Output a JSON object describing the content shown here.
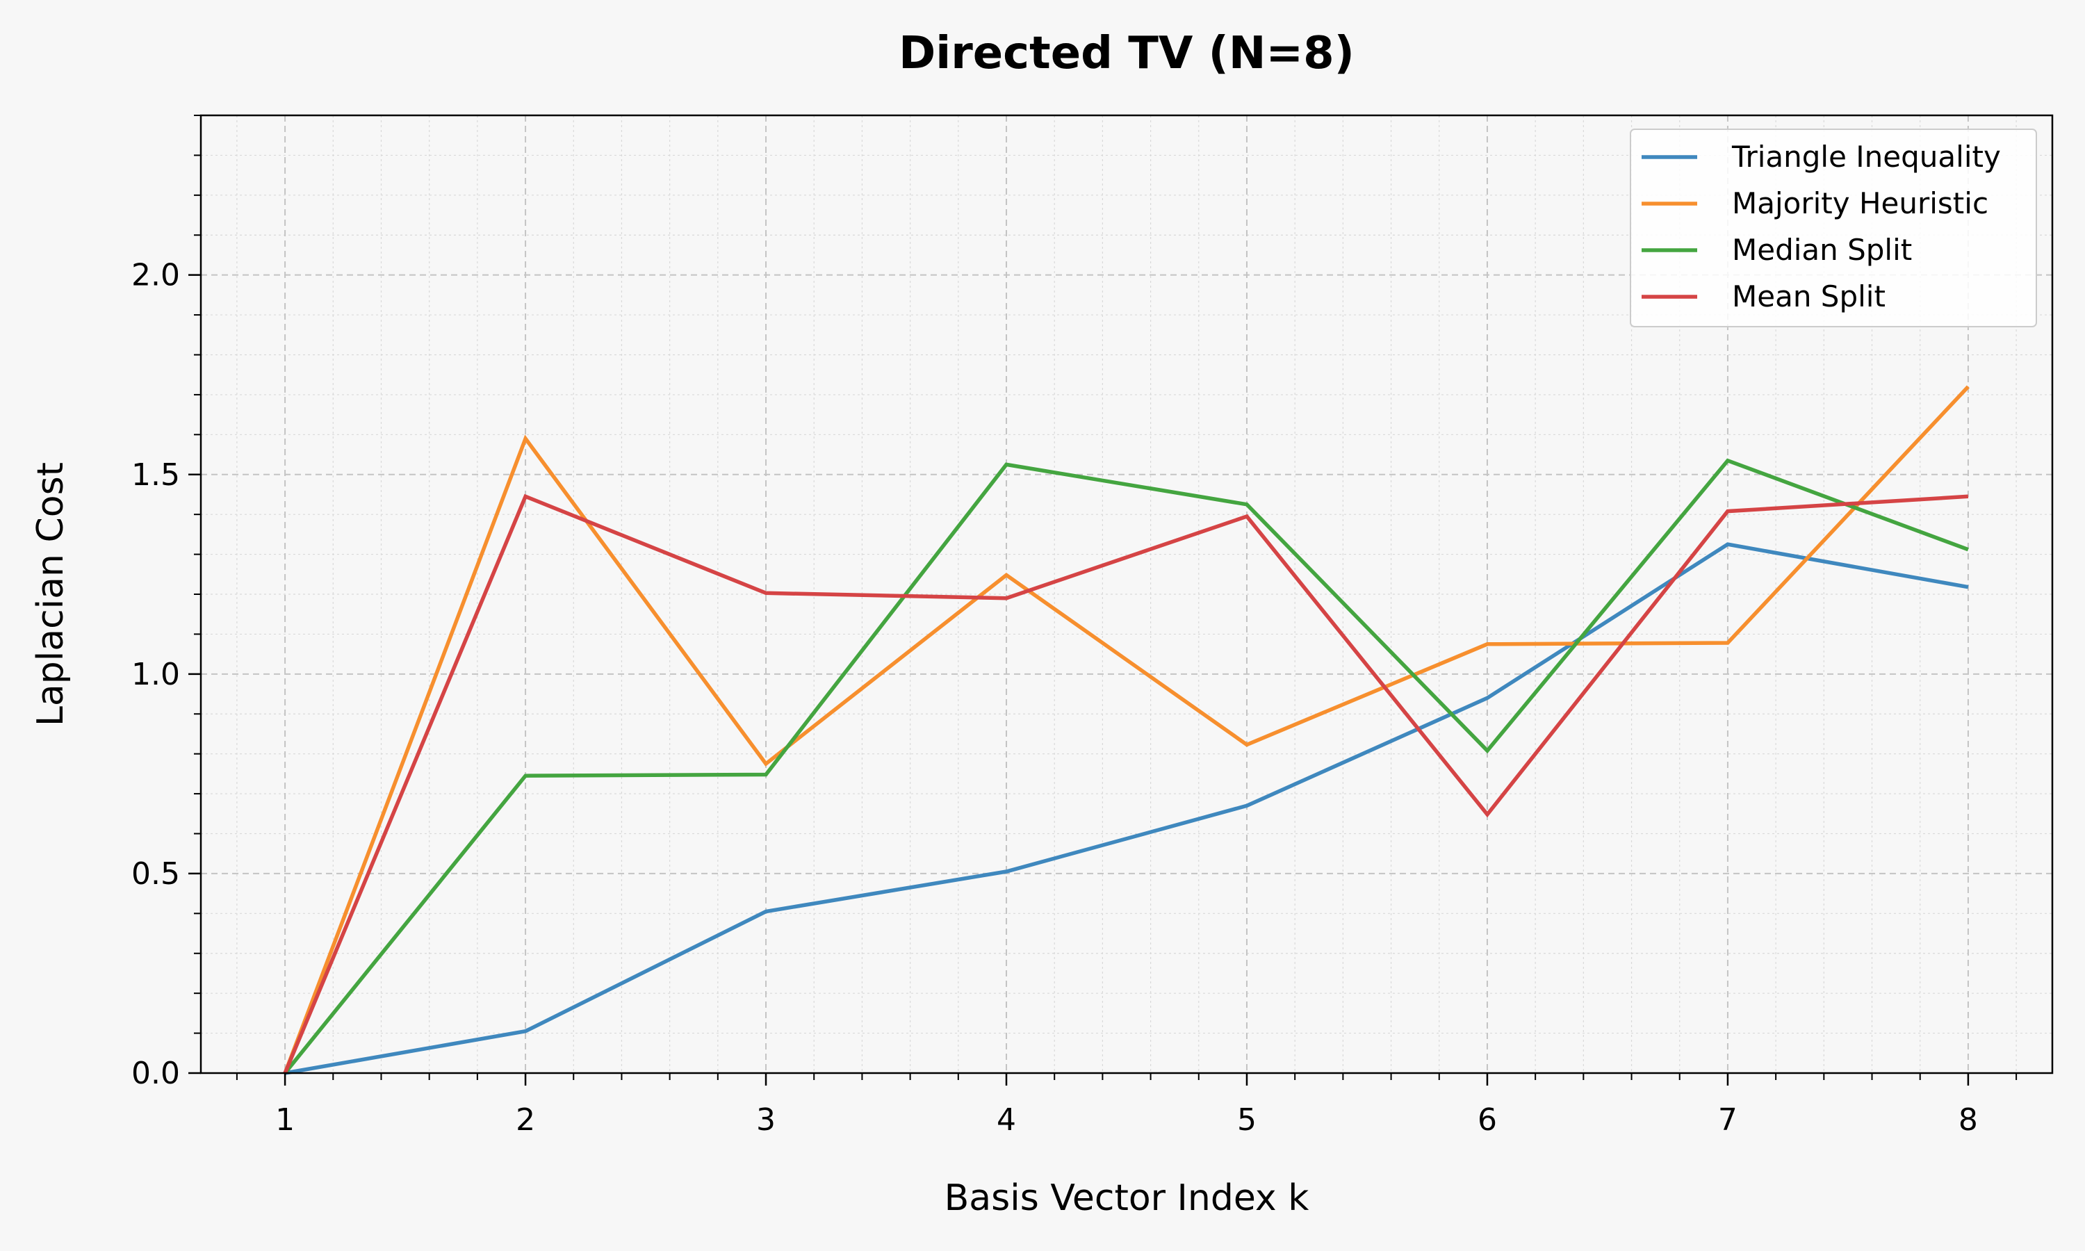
{
  "chart_data": {
    "type": "line",
    "title": "Directed TV (N=8)",
    "xlabel": "Basis Vector Index k",
    "ylabel": "Laplacian Cost",
    "x": [
      1,
      2,
      3,
      4,
      5,
      6,
      7,
      8
    ],
    "xlim": [
      0.65,
      8.35
    ],
    "ylim": [
      0.0,
      2.4
    ],
    "yticks": [
      0.0,
      0.5,
      1.0,
      1.5,
      2.0
    ],
    "ytick_labels": [
      "0.0",
      "0.5",
      "1.0",
      "1.5",
      "2.0"
    ],
    "xtick_labels": [
      "1",
      "2",
      "3",
      "4",
      "5",
      "6",
      "7",
      "8"
    ],
    "grid": true,
    "legend_position": "top-right",
    "series": [
      {
        "name": "Triangle Inequality",
        "color": "#3f88be",
        "values": [
          0.0,
          0.105,
          0.405,
          0.505,
          0.67,
          0.94,
          1.325,
          1.218
        ]
      },
      {
        "name": "Majority Heuristic",
        "color": "#f78f2e",
        "values": [
          0.0,
          1.59,
          0.775,
          1.248,
          0.823,
          1.075,
          1.078,
          1.72
        ]
      },
      {
        "name": "Median Split",
        "color": "#44a540",
        "values": [
          0.0,
          0.745,
          0.748,
          1.525,
          1.425,
          0.808,
          1.535,
          1.312
        ]
      },
      {
        "name": "Mean Split",
        "color": "#d54445",
        "values": [
          0.0,
          1.445,
          1.203,
          1.19,
          1.395,
          0.648,
          1.408,
          1.445
        ]
      }
    ]
  }
}
